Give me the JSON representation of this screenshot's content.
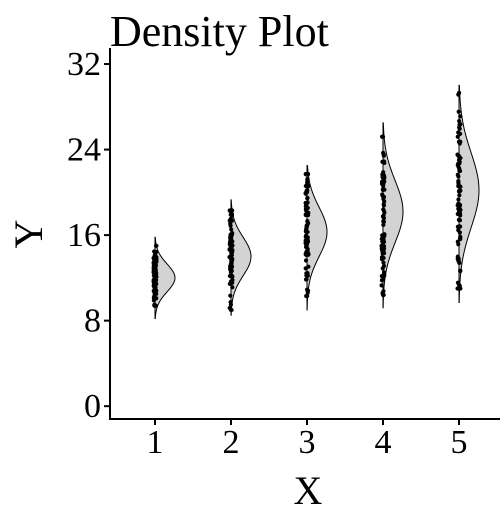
{
  "chart_data": {
    "type": "violin",
    "title": "Density Plot",
    "xlabel": "X",
    "ylabel": "Y",
    "categories": [
      "1",
      "2",
      "3",
      "4",
      "5"
    ],
    "x_ticks": [
      "1",
      "2",
      "3",
      "4",
      "5"
    ],
    "y_ticks": [
      "0",
      "8",
      "16",
      "24",
      "32"
    ],
    "ylim": [
      -1.2,
      33.5
    ],
    "grid": false,
    "legend": "none",
    "colors": {
      "fill": "#d3d3d3",
      "outline": "#000000",
      "points": "#000000"
    },
    "groups": [
      {
        "category": "1",
        "min": 9.4,
        "max": 15.0,
        "mean": 12.0,
        "sd": 1.3,
        "density_range": [
          8.2,
          15.8
        ]
      },
      {
        "category": "2",
        "min": 9.0,
        "max": 18.3,
        "mean": 14.0,
        "sd": 1.8,
        "density_range": [
          8.5,
          19.3
        ]
      },
      {
        "category": "3",
        "min": 10.3,
        "max": 21.7,
        "mean": 16.3,
        "sd": 2.3,
        "density_range": [
          9.0,
          22.5
        ]
      },
      {
        "category": "4",
        "min": 10.4,
        "max": 25.2,
        "mean": 18.2,
        "sd": 2.9,
        "density_range": [
          9.2,
          26.5
        ]
      },
      {
        "category": "5",
        "min": 11.0,
        "max": 29.3,
        "mean": 20.2,
        "sd": 3.5,
        "density_range": [
          9.7,
          30.0
        ]
      }
    ]
  }
}
